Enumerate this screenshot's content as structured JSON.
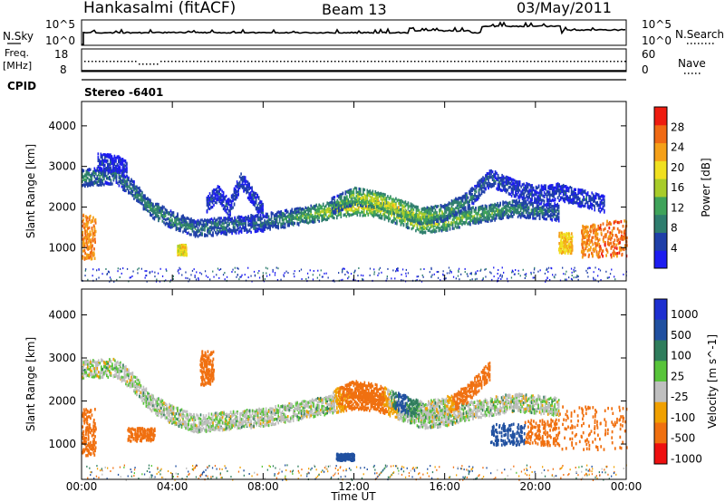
{
  "header": {
    "station": "Hankasalmi (fitACF)",
    "beam": "Beam 13",
    "date": "03/May/2011"
  },
  "strips": {
    "nsky_label": "N.Sky",
    "nsky_ticks": [
      "10^5",
      "10^0"
    ],
    "nsearch_label": "N.Search",
    "freq_label_line1": "Freq.",
    "freq_label_line2": "[MHz]",
    "freq_ticks": [
      "18",
      "8"
    ],
    "nave_label": "Nave",
    "nave_ticks": [
      "60",
      "0"
    ],
    "cpid_label": "CPID",
    "cpid_value": "Stereo -6401"
  },
  "colors": {
    "power": [
      "#1c1cf0",
      "#1f3fa8",
      "#2e7d6e",
      "#3fa35a",
      "#a8cc2a",
      "#f0e020",
      "#f5a018",
      "#f06a14",
      "#ee1c10"
    ],
    "velocity": [
      "#1d2fd0",
      "#2050a0",
      "#2f7d5c",
      "#58c43a",
      "#bfbfbf",
      "#f0a000",
      "#f07010",
      "#ee1010"
    ],
    "ground": "#9a9a9a"
  },
  "chart_data": [
    {
      "type": "heatmap",
      "name": "power",
      "xlabel": "",
      "ylabel": "Slant Range [km]",
      "x_ticks": [
        "00:00",
        "04:00",
        "08:00",
        "12:00",
        "16:00",
        "20:00",
        "00:00"
      ],
      "y_ticks": [
        1000,
        2000,
        3000,
        4000
      ],
      "xlim": [
        0,
        24
      ],
      "ylim": [
        180,
        4600
      ],
      "colorbar": {
        "label": "Power [dB]",
        "ticks": [
          4,
          8,
          12,
          16,
          20,
          24,
          28
        ],
        "range": [
          0,
          32
        ]
      },
      "echo_bands": [
        {
          "x": [
            0.0,
            0.7,
            1.5,
            2.2,
            3.0,
            4.0,
            5.0,
            6.0,
            7.0,
            8.0,
            9.0,
            10.0,
            11.0,
            12.0,
            13.0,
            14.0,
            15.0,
            16.0,
            17.0,
            18.0,
            19.0,
            20.0,
            21.0
          ],
          "y": [
            2750,
            2780,
            2800,
            2500,
            2000,
            1700,
            1500,
            1550,
            1600,
            1650,
            1750,
            1850,
            1950,
            2050,
            2000,
            1800,
            1600,
            1650,
            1800,
            1900,
            2000,
            1950,
            1900
          ],
          "level": [
            12,
            10,
            8,
            10,
            12,
            12,
            10,
            10,
            8,
            8,
            12,
            16,
            20,
            24,
            22,
            20,
            20,
            18,
            16,
            14,
            12,
            10,
            8
          ]
        },
        {
          "x": [
            0.7,
            1.5,
            2.0
          ],
          "y": [
            3150,
            3100,
            2950
          ],
          "level": [
            6,
            4,
            4
          ]
        },
        {
          "x": [
            5.5,
            6.0,
            6.5,
            7.0,
            7.5,
            8.0
          ],
          "y": [
            2100,
            2350,
            2000,
            2700,
            2300,
            1900
          ],
          "level": [
            6,
            6,
            6,
            6,
            6,
            6
          ]
        },
        {
          "x": [
            11.0,
            12.0,
            13.0,
            14.0,
            15.0,
            16.0,
            17.0,
            18.0,
            19.0,
            20.0,
            21.0,
            22.0,
            23.0
          ],
          "y": [
            2050,
            2300,
            2200,
            2000,
            1800,
            1900,
            2200,
            2750,
            2500,
            2350,
            2400,
            2250,
            2100
          ],
          "level": [
            10,
            18,
            22,
            22,
            18,
            14,
            10,
            8,
            6,
            6,
            6,
            6,
            6
          ]
        }
      ],
      "echo_patches": [
        {
          "x": [
            0.0,
            0.6
          ],
          "y": [
            750,
            1850
          ],
          "level": 28
        },
        {
          "x": [
            4.2,
            4.6
          ],
          "y": [
            850,
            1100
          ],
          "level": 22
        },
        {
          "x": [
            21.0,
            21.6
          ],
          "y": [
            900,
            1400
          ],
          "level": 24
        },
        {
          "x": [
            22.0,
            22.8
          ],
          "y": [
            800,
            1600
          ],
          "level": 28
        },
        {
          "x": [
            22.8,
            24.0
          ],
          "y": [
            800,
            1700
          ],
          "level": 30
        }
      ]
    },
    {
      "type": "heatmap",
      "name": "velocity",
      "xlabel": "Time UT",
      "ylabel": "Slant Range [km]",
      "x_ticks": [
        "00:00",
        "04:00",
        "08:00",
        "12:00",
        "16:00",
        "20:00",
        "00:00"
      ],
      "y_ticks": [
        1000,
        2000,
        3000,
        4000
      ],
      "xlim": [
        0,
        24
      ],
      "ylim": [
        180,
        4600
      ],
      "colorbar": {
        "label": "Velocity [m s^-1]",
        "ticks": [
          1000,
          500,
          100,
          25,
          -25,
          -100,
          -500,
          -1000
        ]
      },
      "echo_bands": [
        {
          "x": [
            0.0,
            0.7,
            1.5,
            2.2,
            3.0,
            4.0,
            5.0,
            6.0,
            7.0,
            8.0,
            9.0,
            10.0,
            11.0,
            12.0,
            13.0,
            14.0,
            15.0,
            16.0,
            17.0,
            18.0,
            19.0,
            20.0,
            21.0
          ],
          "y": [
            2750,
            2780,
            2800,
            2500,
            2000,
            1700,
            1500,
            1550,
            1600,
            1650,
            1750,
            1850,
            1950,
            2050,
            2000,
            1800,
            1600,
            1650,
            1800,
            1900,
            2000,
            1950,
            1900
          ],
          "velocity": [
            0,
            0,
            0,
            0,
            0,
            0,
            0,
            0,
            0,
            0,
            0,
            0,
            0,
            -150,
            -200,
            0,
            0,
            0,
            0,
            0,
            0,
            0,
            0
          ]
        },
        {
          "x": [
            11.0,
            12.0,
            13.0,
            14.0,
            15.0,
            16.0,
            17.0,
            18.0
          ],
          "y": [
            2050,
            2300,
            2200,
            2000,
            1800,
            1900,
            2200,
            2750
          ],
          "velocity": [
            0,
            -300,
            -200,
            150,
            0,
            0,
            -300,
            -400
          ]
        }
      ],
      "echo_patches": [
        {
          "x": [
            0.0,
            0.6
          ],
          "y": [
            750,
            1850
          ],
          "velocity": -400
        },
        {
          "x": [
            2.0,
            3.2
          ],
          "y": [
            1100,
            1400
          ],
          "velocity": -300
        },
        {
          "x": [
            5.2,
            5.8
          ],
          "y": [
            2400,
            3200
          ],
          "velocity": -400
        },
        {
          "x": [
            11.2,
            12.0
          ],
          "y": [
            650,
            800
          ],
          "velocity": 200
        },
        {
          "x": [
            18.0,
            19.5
          ],
          "y": [
            1000,
            1500
          ],
          "velocity": 300
        },
        {
          "x": [
            19.5,
            21.0
          ],
          "y": [
            1000,
            1600
          ],
          "velocity": -300
        },
        {
          "x": [
            21.0,
            24.0
          ],
          "y": [
            900,
            1900
          ],
          "velocity": -400
        }
      ]
    }
  ]
}
